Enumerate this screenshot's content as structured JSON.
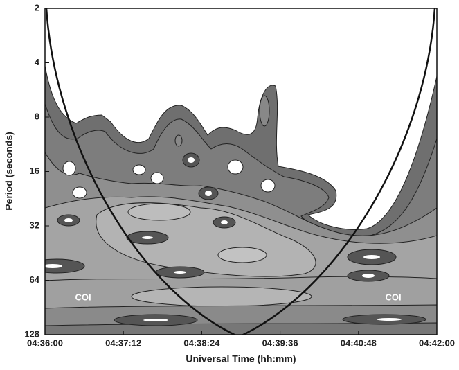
{
  "chart_data": {
    "type": "contour",
    "xlabel": "Universal Time (hh:mm)",
    "ylabel": "Period (seconds)",
    "xlim": [
      "04:36:00",
      "04:42:00"
    ],
    "xticks": [
      "04:36:00",
      "04:37:12",
      "04:38:24",
      "04:39:36",
      "04:40:48",
      "04:42:00"
    ],
    "ylim": [
      2,
      128
    ],
    "yticks": [
      2,
      4,
      8,
      16,
      32,
      64,
      128
    ],
    "y_scale": "log",
    "y_inverted": true,
    "annotations": [
      "COI",
      "COI"
    ]
  }
}
